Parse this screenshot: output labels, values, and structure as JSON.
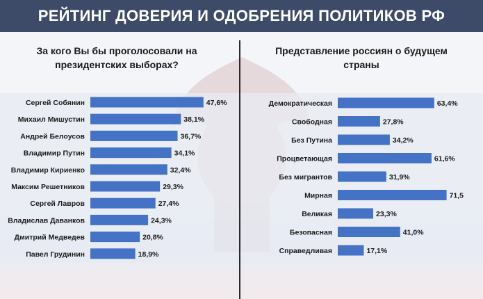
{
  "header": {
    "title": "РЕЙТИНГ ДОВЕРИЯ И ОДОБРЕНИЯ ПОЛИТИКОВ РФ"
  },
  "colors": {
    "header_bg": "#3d4b69",
    "bar": "#4472c4",
    "divider": "#2a2a2a"
  },
  "chart_data": [
    {
      "type": "bar",
      "orientation": "horizontal",
      "title": "За кого Вы бы проголосовали на\nпрезидентских выборах?",
      "categories": [
        "Сергей Собянин",
        "Михаил Мишустин",
        "Андрей Белоусов",
        "Владимир Путин",
        "Владимир Кириенко",
        "Максим Решетников",
        "Сергей Лавров",
        "Владислав Даванков",
        "Дмитрий Медведев",
        "Павел Грудинин"
      ],
      "values": [
        47.6,
        38.1,
        36.7,
        34.1,
        32.4,
        29.3,
        27.4,
        24.3,
        20.8,
        18.9
      ],
      "value_labels": [
        "47,6%",
        "38,1%",
        "36,7%",
        "34,1%",
        "32,4%",
        "29,3%",
        "27,4%",
        "24,3%",
        "20,8%",
        "18,9%"
      ],
      "grid": false
    },
    {
      "type": "bar",
      "orientation": "horizontal",
      "title": "Представление россиян о будущем\nстраны",
      "categories": [
        "Демократическая",
        "Свободная",
        "Без Путина",
        "Процветающая",
        "Без мигрантов",
        "Мирная",
        "Великая",
        "Безопасная",
        "Справедливая"
      ],
      "values": [
        63.4,
        27.8,
        34.2,
        61.6,
        31.9,
        71.5,
        23.3,
        41.0,
        17.1
      ],
      "value_labels": [
        "63,4%",
        "27,8%",
        "34,2%",
        "61,6%",
        "31,9%",
        "71,5",
        "23,3%",
        "41,0%",
        "17,1%"
      ],
      "grid": false
    }
  ]
}
